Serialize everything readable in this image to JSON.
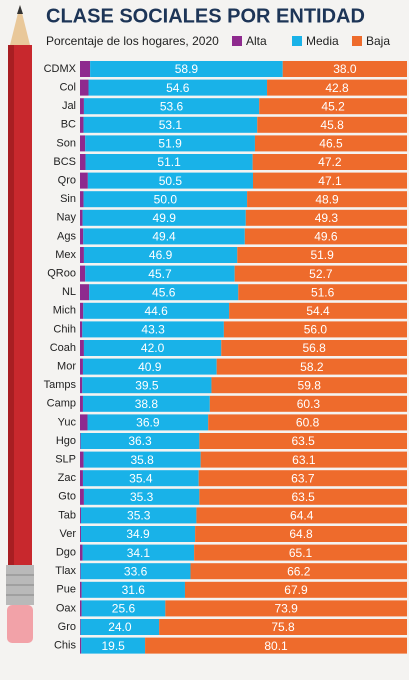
{
  "chart_data": {
    "type": "stacked-bar-horizontal",
    "title": "CLASE SOCIALES POR ENTIDAD",
    "subtitle": "Porcentaje de los hogares, 2020",
    "categories": [
      "CDMX",
      "Col",
      "Jal",
      "BC",
      "Son",
      "BCS",
      "Qro",
      "Sin",
      "Nay",
      "Ags",
      "Mex",
      "QRoo",
      "NL",
      "Mich",
      "Chih",
      "Coah",
      "Mor",
      "Tamps",
      "Camp",
      "Yuc",
      "Hgo",
      "SLP",
      "Zac",
      "Gto",
      "Tab",
      "Ver",
      "Dgo",
      "Tlax",
      "Pue",
      "Oax",
      "Gro",
      "Chis"
    ],
    "xlim": [
      0,
      100
    ],
    "series": [
      {
        "name": "Alta",
        "color": "#8e2a8e",
        "values": [
          3.1,
          2.6,
          1.2,
          1.1,
          1.6,
          1.7,
          2.4,
          1.1,
          0.8,
          1.0,
          1.2,
          1.6,
          2.8,
          1.0,
          0.7,
          1.2,
          0.9,
          0.7,
          0.9,
          2.3,
          0.2,
          1.1,
          0.9,
          1.2,
          0.3,
          0.3,
          0.8,
          0.2,
          0.5,
          0.5,
          0.2,
          0.4
        ]
      },
      {
        "name": "Media",
        "color": "#19b2e8",
        "values": [
          58.9,
          54.6,
          53.6,
          53.1,
          51.9,
          51.1,
          50.5,
          50.0,
          49.9,
          49.4,
          46.9,
          45.7,
          45.6,
          44.6,
          43.3,
          42.0,
          40.9,
          39.5,
          38.8,
          36.9,
          36.3,
          35.8,
          35.4,
          35.3,
          35.3,
          34.9,
          34.1,
          33.6,
          31.6,
          25.6,
          24.0,
          19.5
        ],
        "value_labels": [
          "58.9",
          "54.6",
          "53.6",
          "53.1",
          "51.9",
          "51.1",
          "50.5",
          "50.0",
          "49.9",
          "49.4",
          "46.9",
          "45.7",
          "45.6",
          "44.6",
          "43.3",
          "42.0",
          "40.9",
          "39.5",
          "38.8",
          "36.9",
          "36.3",
          "35.8",
          "35.4",
          "35.3",
          "35.3",
          "34.9",
          "34.1",
          "33.6",
          "31.6",
          "25.6",
          "24.0",
          "19.5"
        ]
      },
      {
        "name": "Baja",
        "color": "#ee6b2c",
        "values": [
          38.0,
          42.8,
          45.2,
          45.8,
          46.5,
          47.2,
          47.1,
          48.9,
          49.3,
          49.6,
          51.9,
          52.7,
          51.6,
          54.4,
          56.0,
          56.8,
          58.2,
          59.8,
          60.3,
          60.8,
          63.5,
          63.1,
          63.7,
          63.5,
          64.4,
          64.8,
          65.1,
          66.2,
          67.9,
          73.9,
          75.8,
          80.1
        ],
        "value_labels": [
          "38.0",
          "42.8",
          "45.2",
          "45.8",
          "46.5",
          "47.2",
          "47.1",
          "48.9",
          "49.3",
          "49.6",
          "51.9",
          "52.7",
          "51.6",
          "54.4",
          "56.0",
          "56.8",
          "58.2",
          "59.8",
          "60.3",
          "60.8",
          "63.5",
          "63.1",
          "63.7",
          "63.5",
          "64.4",
          "64.8",
          "65.1",
          "66.2",
          "67.9",
          "73.9",
          "75.8",
          "80.1"
        ]
      }
    ]
  }
}
